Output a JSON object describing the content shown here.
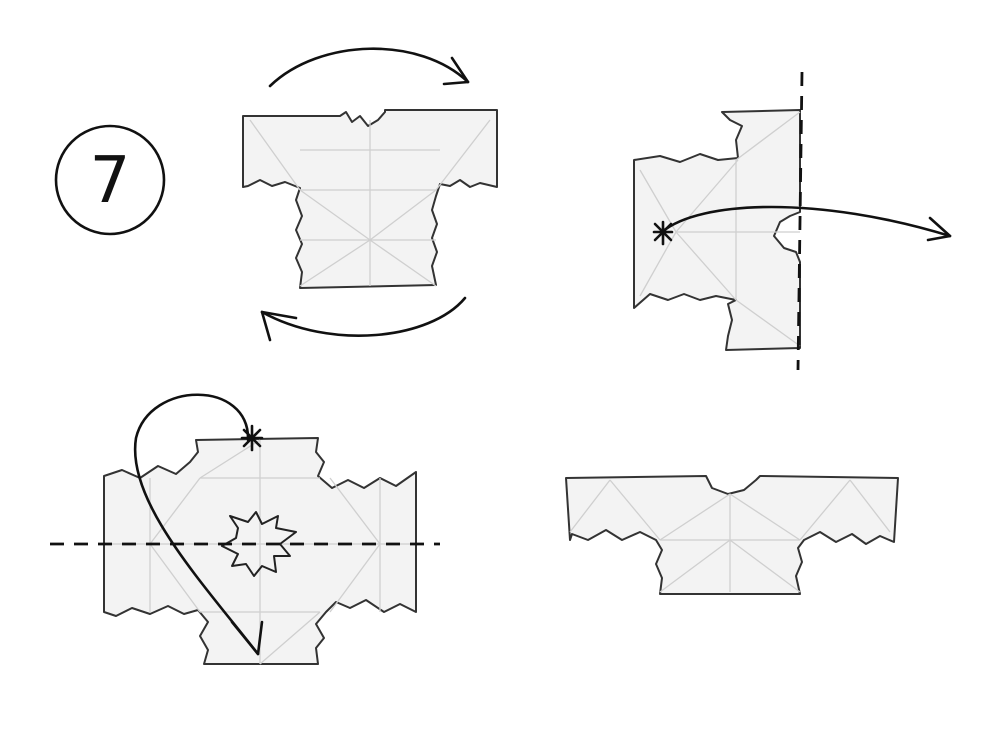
{
  "step": {
    "number": "7"
  },
  "panels": [
    {
      "id": "rotate",
      "action": "turn-over"
    },
    {
      "id": "fold-right",
      "action": "valley-fold"
    },
    {
      "id": "fold-down",
      "action": "valley-fold"
    },
    {
      "id": "result",
      "action": "result"
    }
  ],
  "colors": {
    "ink": "#111111",
    "paper": "#f3f3f3",
    "crease": "#cfcfcf"
  }
}
